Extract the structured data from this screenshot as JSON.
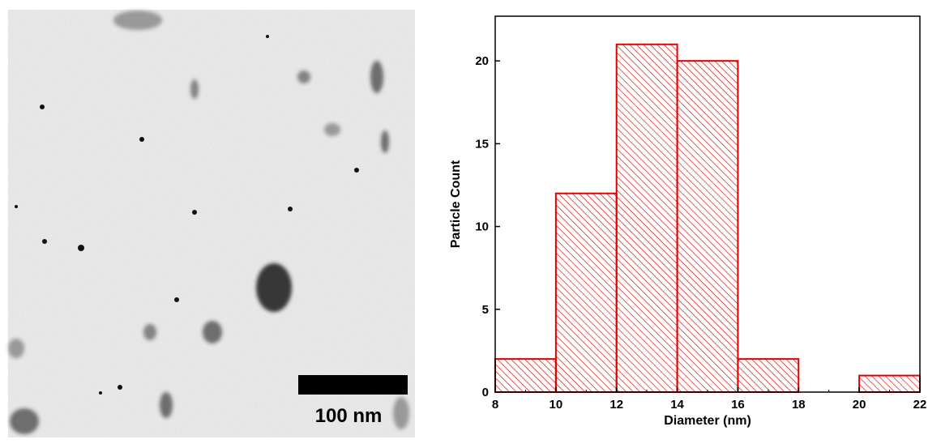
{
  "image": {
    "scale_bar": "100 nm"
  },
  "chart_data": {
    "type": "histogram",
    "xlabel": "Diameter (nm)",
    "ylabel": "Particle Count",
    "bins": [
      8,
      10,
      12,
      14,
      16,
      18,
      20,
      22
    ],
    "values": [
      2,
      12,
      21,
      20,
      2,
      0,
      1
    ],
    "color": "#e00000",
    "xlim": [
      8,
      22
    ],
    "ylim": [
      0,
      22.7
    ],
    "xticks": [
      8,
      10,
      12,
      14,
      16,
      18,
      20,
      22
    ],
    "yticks": [
      0,
      5,
      10,
      15,
      20
    ]
  }
}
